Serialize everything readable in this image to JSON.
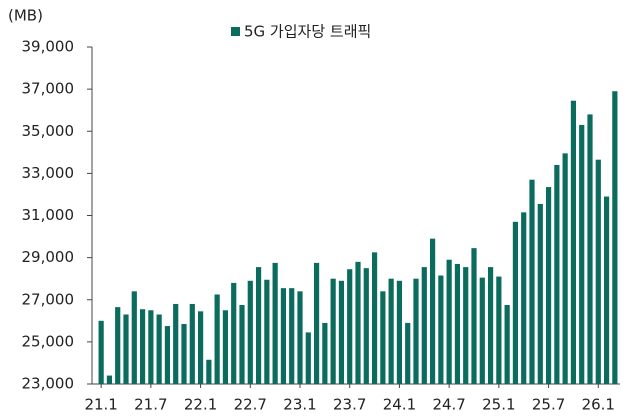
{
  "chart_data": {
    "type": "bar",
    "unit_label": "(MB)",
    "series": [
      {
        "name": "5G 가입자당 트래픽",
        "color": "#0b6b5d",
        "values": [
          26000,
          23400,
          26650,
          26300,
          27400,
          26550,
          26500,
          26300,
          25750,
          26800,
          25850,
          26800,
          26450,
          24150,
          27250,
          26500,
          27800,
          26750,
          27900,
          28550,
          27950,
          28750,
          27550,
          27550,
          27400,
          25450,
          28750,
          25900,
          28000,
          27900,
          28450,
          28800,
          28500,
          29250,
          27400,
          28000,
          27900,
          25900,
          28000,
          28550,
          29900,
          28150,
          28900,
          28700,
          28550,
          29450,
          28050,
          28550,
          28100,
          26750,
          30700,
          31150,
          32700,
          31550,
          32350,
          33400,
          33950,
          36450,
          35300,
          35800,
          33650,
          31900,
          36900
        ]
      }
    ],
    "categories": [
      "21.1",
      null,
      null,
      null,
      null,
      null,
      "21.7",
      null,
      null,
      null,
      null,
      null,
      "22.1",
      null,
      null,
      null,
      null,
      null,
      "22.7",
      null,
      null,
      null,
      null,
      null,
      "23.1",
      null,
      null,
      null,
      null,
      null,
      "23.7",
      null,
      null,
      null,
      null,
      null,
      "24.1",
      null,
      null,
      null,
      null,
      null,
      "24.7",
      null,
      null,
      null,
      null,
      null,
      "25.1",
      null,
      null,
      null,
      null,
      null,
      "25.7",
      null,
      null,
      null,
      null,
      null,
      "26.1",
      null,
      null
    ],
    "ylim": [
      23000,
      39000
    ],
    "yticks": [
      {
        "value": 23000,
        "label": "23,000"
      },
      {
        "value": 25000,
        "label": "25,000"
      },
      {
        "value": 27000,
        "label": "27,000"
      },
      {
        "value": 29000,
        "label": "29,000"
      },
      {
        "value": 31000,
        "label": "31,000"
      },
      {
        "value": 33000,
        "label": "33,000"
      },
      {
        "value": 35000,
        "label": "35,000"
      },
      {
        "value": 37000,
        "label": "37,000"
      },
      {
        "value": 39000,
        "label": "39,000"
      }
    ],
    "legend": "top"
  }
}
